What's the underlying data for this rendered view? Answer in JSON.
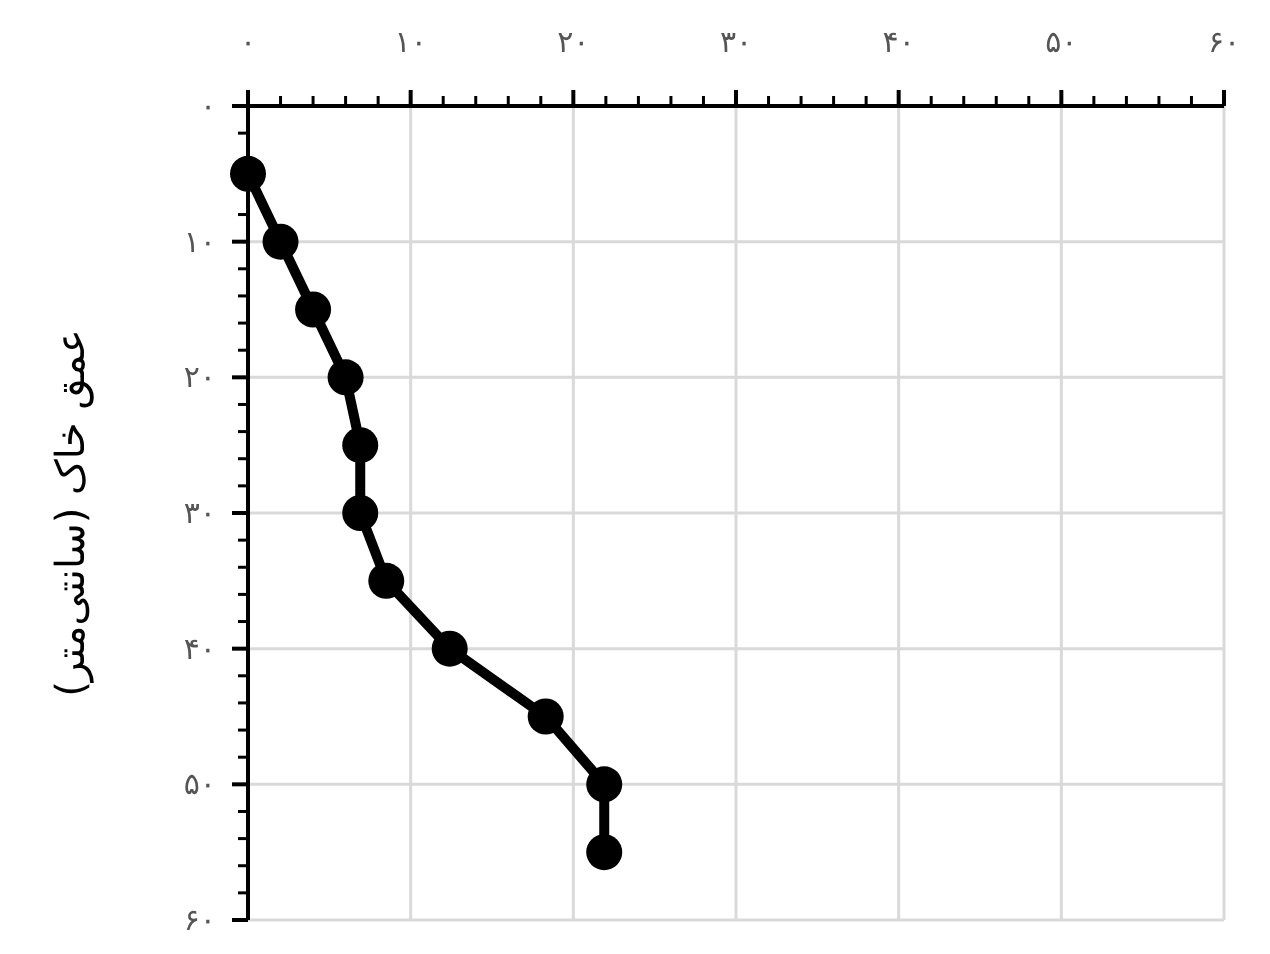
{
  "chart_data": {
    "type": "line",
    "ylabel": "عمق خاک (سانتی‌متر)",
    "x": [
      0,
      2,
      4,
      6,
      6.9,
      6.9,
      8.5,
      12.4,
      18.3,
      21.9,
      21.9
    ],
    "series": [
      {
        "color": "#000000",
        "values": [
          5,
          10,
          15,
          20,
          25,
          30,
          35,
          40,
          45,
          50,
          55
        ]
      }
    ],
    "xlim": [
      0,
      60
    ],
    "ylim": [
      60,
      0
    ],
    "xticks": [
      {
        "value": 0,
        "label": "۰"
      },
      {
        "value": 10,
        "label": "۱۰"
      },
      {
        "value": 20,
        "label": "۲۰"
      },
      {
        "value": 30,
        "label": "۳۰"
      },
      {
        "value": 40,
        "label": "۴۰"
      },
      {
        "value": 50,
        "label": "۵۰"
      },
      {
        "value": 60,
        "label": "۶۰"
      }
    ],
    "yticks": [
      {
        "value": 0,
        "label": "۰"
      },
      {
        "value": 10,
        "label": "۱۰"
      },
      {
        "value": 20,
        "label": "۲۰"
      },
      {
        "value": 30,
        "label": "۳۰"
      },
      {
        "value": 40,
        "label": "۴۰"
      },
      {
        "value": 50,
        "label": "۵۰"
      },
      {
        "value": 60,
        "label": "۶۰"
      }
    ],
    "grid": true,
    "marker": "circle",
    "line_style": "solid"
  }
}
